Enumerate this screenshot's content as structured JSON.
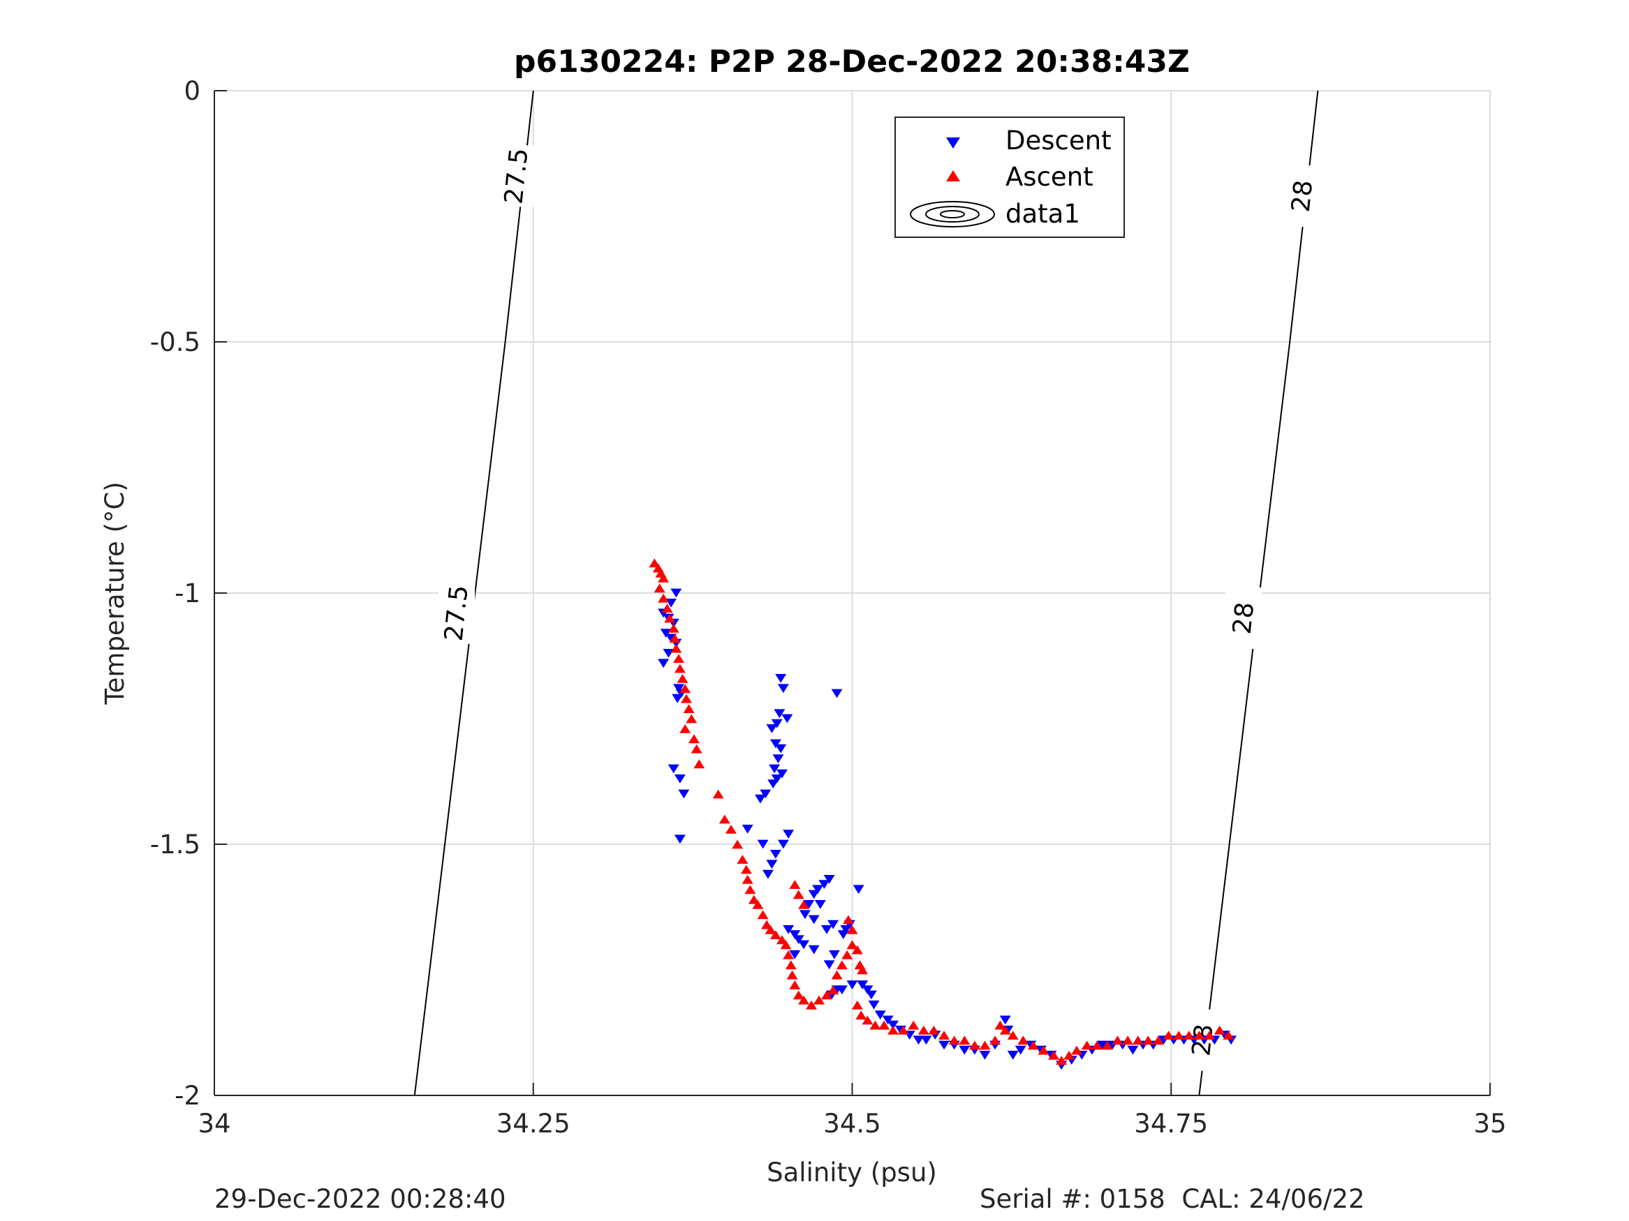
{
  "figure": {
    "footer_left": "29-Dec-2022 00:28:40",
    "footer_right": "Serial #: 0158  CAL: 24/06/22"
  },
  "chart_data": {
    "type": "scatter",
    "title": "p6130224: P2P 28-Dec-2022 20:38:43Z",
    "xlabel": "Salinity (psu)",
    "ylabel": "Temperature (°C)",
    "xlim": [
      34,
      35
    ],
    "ylim": [
      -2,
      0
    ],
    "xticks": [
      34,
      34.25,
      34.5,
      34.75,
      35
    ],
    "xtick_labels": [
      "34",
      "34.25",
      "34.5",
      "34.75",
      "35"
    ],
    "yticks": [
      -2,
      -1.5,
      -1,
      -0.5,
      0
    ],
    "ytick_labels": [
      "-2",
      "-1.5",
      "-1",
      "-0.5",
      "0"
    ],
    "grid": true,
    "legend_position": "top-center",
    "colors": {
      "descent": "#0000ff",
      "ascent": "#ff0000",
      "contour": "#000000",
      "grid": "#dcdcdc"
    },
    "series": [
      {
        "name": "Descent",
        "marker": "triangle-down",
        "color": "#0000ff",
        "points": [
          [
            34.362,
            -1.0
          ],
          [
            34.358,
            -1.02
          ],
          [
            34.352,
            -1.04
          ],
          [
            34.356,
            -1.05
          ],
          [
            34.36,
            -1.06
          ],
          [
            34.354,
            -1.08
          ],
          [
            34.358,
            -1.09
          ],
          [
            34.362,
            -1.1
          ],
          [
            34.356,
            -1.12
          ],
          [
            34.352,
            -1.14
          ],
          [
            34.364,
            -1.19
          ],
          [
            34.366,
            -1.2
          ],
          [
            34.363,
            -1.21
          ],
          [
            34.36,
            -1.35
          ],
          [
            34.365,
            -1.37
          ],
          [
            34.368,
            -1.4
          ],
          [
            34.365,
            -1.49
          ],
          [
            34.444,
            -1.17
          ],
          [
            34.446,
            -1.19
          ],
          [
            34.443,
            -1.24
          ],
          [
            34.449,
            -1.25
          ],
          [
            34.441,
            -1.26
          ],
          [
            34.437,
            -1.27
          ],
          [
            34.44,
            -1.3
          ],
          [
            34.444,
            -1.31
          ],
          [
            34.442,
            -1.33
          ],
          [
            34.439,
            -1.35
          ],
          [
            34.445,
            -1.36
          ],
          [
            34.441,
            -1.37
          ],
          [
            34.438,
            -1.38
          ],
          [
            34.432,
            -1.4
          ],
          [
            34.428,
            -1.41
          ],
          [
            34.418,
            -1.47
          ],
          [
            34.45,
            -1.48
          ],
          [
            34.446,
            -1.5
          ],
          [
            34.43,
            -1.5
          ],
          [
            34.44,
            -1.52
          ],
          [
            34.437,
            -1.54
          ],
          [
            34.434,
            -1.56
          ],
          [
            34.488,
            -1.2
          ],
          [
            34.482,
            -1.57
          ],
          [
            34.478,
            -1.58
          ],
          [
            34.473,
            -1.59
          ],
          [
            34.47,
            -1.6
          ],
          [
            34.466,
            -1.62
          ],
          [
            34.475,
            -1.62
          ],
          [
            34.463,
            -1.64
          ],
          [
            34.47,
            -1.65
          ],
          [
            34.485,
            -1.66
          ],
          [
            34.48,
            -1.67
          ],
          [
            34.45,
            -1.67
          ],
          [
            34.455,
            -1.68
          ],
          [
            34.458,
            -1.69
          ],
          [
            34.462,
            -1.7
          ],
          [
            34.47,
            -1.71
          ],
          [
            34.486,
            -1.72
          ],
          [
            34.455,
            -1.72
          ],
          [
            34.482,
            -1.74
          ],
          [
            34.505,
            -1.59
          ],
          [
            34.498,
            -1.66
          ],
          [
            34.495,
            -1.67
          ],
          [
            34.493,
            -1.68
          ],
          [
            34.5,
            -1.78
          ],
          [
            34.492,
            -1.79
          ],
          [
            34.488,
            -1.79
          ],
          [
            34.484,
            -1.8
          ],
          [
            34.508,
            -1.78
          ],
          [
            34.512,
            -1.79
          ],
          [
            34.515,
            -1.8
          ],
          [
            34.517,
            -1.82
          ],
          [
            34.522,
            -1.84
          ],
          [
            34.528,
            -1.85
          ],
          [
            34.532,
            -1.86
          ],
          [
            34.538,
            -1.87
          ],
          [
            34.545,
            -1.88
          ],
          [
            34.552,
            -1.89
          ],
          [
            34.558,
            -1.89
          ],
          [
            34.565,
            -1.88
          ],
          [
            34.572,
            -1.9
          ],
          [
            34.58,
            -1.9
          ],
          [
            34.588,
            -1.91
          ],
          [
            34.596,
            -1.91
          ],
          [
            34.604,
            -1.92
          ],
          [
            34.612,
            -1.9
          ],
          [
            34.62,
            -1.85
          ],
          [
            34.622,
            -1.87
          ],
          [
            34.626,
            -1.92
          ],
          [
            34.632,
            -1.91
          ],
          [
            34.64,
            -1.9
          ],
          [
            34.648,
            -1.91
          ],
          [
            34.656,
            -1.92
          ],
          [
            34.664,
            -1.94
          ],
          [
            34.672,
            -1.93
          ],
          [
            34.68,
            -1.92
          ],
          [
            34.688,
            -1.91
          ],
          [
            34.696,
            -1.9
          ],
          [
            34.704,
            -1.9
          ],
          [
            34.712,
            -1.9
          ],
          [
            34.72,
            -1.91
          ],
          [
            34.728,
            -1.9
          ],
          [
            34.736,
            -1.9
          ],
          [
            34.744,
            -1.89
          ],
          [
            34.752,
            -1.89
          ],
          [
            34.76,
            -1.89
          ],
          [
            34.768,
            -1.89
          ],
          [
            34.776,
            -1.89
          ],
          [
            34.784,
            -1.89
          ],
          [
            34.792,
            -1.88
          ],
          [
            34.797,
            -1.89
          ]
        ]
      },
      {
        "name": "Ascent",
        "marker": "triangle-up",
        "color": "#ff0000",
        "points": [
          [
            34.345,
            -0.94
          ],
          [
            34.348,
            -0.95
          ],
          [
            34.35,
            -0.96
          ],
          [
            34.352,
            -0.97
          ],
          [
            34.349,
            -0.99
          ],
          [
            34.352,
            -1.01
          ],
          [
            34.355,
            -1.03
          ],
          [
            34.357,
            -1.05
          ],
          [
            34.36,
            -1.07
          ],
          [
            34.361,
            -1.09
          ],
          [
            34.362,
            -1.11
          ],
          [
            34.364,
            -1.13
          ],
          [
            34.365,
            -1.15
          ],
          [
            34.367,
            -1.17
          ],
          [
            34.369,
            -1.19
          ],
          [
            34.37,
            -1.21
          ],
          [
            34.372,
            -1.23
          ],
          [
            34.374,
            -1.25
          ],
          [
            34.369,
            -1.27
          ],
          [
            34.376,
            -1.29
          ],
          [
            34.378,
            -1.31
          ],
          [
            34.38,
            -1.34
          ],
          [
            34.395,
            -1.4
          ],
          [
            34.4,
            -1.45
          ],
          [
            34.405,
            -1.47
          ],
          [
            34.41,
            -1.5
          ],
          [
            34.414,
            -1.53
          ],
          [
            34.417,
            -1.55
          ],
          [
            34.418,
            -1.57
          ],
          [
            34.42,
            -1.59
          ],
          [
            34.423,
            -1.61
          ],
          [
            34.426,
            -1.62
          ],
          [
            34.43,
            -1.64
          ],
          [
            34.433,
            -1.66
          ],
          [
            34.436,
            -1.67
          ],
          [
            34.44,
            -1.68
          ],
          [
            34.445,
            -1.69
          ],
          [
            34.448,
            -1.7
          ],
          [
            34.45,
            -1.72
          ],
          [
            34.452,
            -1.74
          ],
          [
            34.453,
            -1.76
          ],
          [
            34.455,
            -1.78
          ],
          [
            34.458,
            -1.8
          ],
          [
            34.462,
            -1.81
          ],
          [
            34.468,
            -1.82
          ],
          [
            34.474,
            -1.81
          ],
          [
            34.48,
            -1.8
          ],
          [
            34.485,
            -1.79
          ],
          [
            34.488,
            -1.76
          ],
          [
            34.492,
            -1.74
          ],
          [
            34.496,
            -1.72
          ],
          [
            34.5,
            -1.7
          ],
          [
            34.455,
            -1.58
          ],
          [
            34.458,
            -1.6
          ],
          [
            34.462,
            -1.62
          ],
          [
            34.497,
            -1.65
          ],
          [
            34.5,
            -1.67
          ],
          [
            34.504,
            -1.71
          ],
          [
            34.506,
            -1.74
          ],
          [
            34.508,
            -1.75
          ],
          [
            34.504,
            -1.82
          ],
          [
            34.507,
            -1.84
          ],
          [
            34.512,
            -1.85
          ],
          [
            34.518,
            -1.86
          ],
          [
            34.525,
            -1.86
          ],
          [
            34.532,
            -1.87
          ],
          [
            34.54,
            -1.87
          ],
          [
            34.548,
            -1.86
          ],
          [
            34.556,
            -1.87
          ],
          [
            34.564,
            -1.87
          ],
          [
            34.572,
            -1.88
          ],
          [
            34.58,
            -1.89
          ],
          [
            34.588,
            -1.89
          ],
          [
            34.596,
            -1.9
          ],
          [
            34.604,
            -1.9
          ],
          [
            34.612,
            -1.89
          ],
          [
            34.616,
            -1.86
          ],
          [
            34.62,
            -1.87
          ],
          [
            34.626,
            -1.88
          ],
          [
            34.634,
            -1.89
          ],
          [
            34.642,
            -1.9
          ],
          [
            34.65,
            -1.91
          ],
          [
            34.658,
            -1.92
          ],
          [
            34.664,
            -1.93
          ],
          [
            34.67,
            -1.92
          ],
          [
            34.676,
            -1.91
          ],
          [
            34.684,
            -1.9
          ],
          [
            34.692,
            -1.9
          ],
          [
            34.7,
            -1.9
          ],
          [
            34.708,
            -1.89
          ],
          [
            34.716,
            -1.89
          ],
          [
            34.724,
            -1.89
          ],
          [
            34.732,
            -1.89
          ],
          [
            34.74,
            -1.89
          ],
          [
            34.748,
            -1.88
          ],
          [
            34.756,
            -1.88
          ],
          [
            34.764,
            -1.88
          ],
          [
            34.772,
            -1.88
          ],
          [
            34.78,
            -1.88
          ],
          [
            34.788,
            -1.87
          ],
          [
            34.795,
            -1.88
          ]
        ]
      },
      {
        "name": "data1",
        "type": "contour",
        "color": "#000000",
        "lines": [
          {
            "level": "27.5",
            "points": [
              [
                34.157,
                -2.0
              ],
              [
                34.228,
                -0.5
              ],
              [
                34.25,
                0.0
              ]
            ]
          },
          {
            "level": "28",
            "points": [
              [
                34.772,
                -2.0
              ],
              [
                34.843,
                -0.5
              ],
              [
                34.865,
                0.0
              ]
            ]
          }
        ],
        "level_labels": [
          {
            "text": "27.5",
            "at": [
              34.237,
              -0.17
            ]
          },
          {
            "text": "27.5",
            "at": [
              34.19,
              -1.04
            ]
          },
          {
            "text": "28",
            "at": [
              34.853,
              -0.21
            ]
          },
          {
            "text": "28",
            "at": [
              34.807,
              -1.05
            ]
          },
          {
            "text": "28",
            "at": [
              34.775,
              -1.89
            ]
          }
        ]
      }
    ]
  }
}
